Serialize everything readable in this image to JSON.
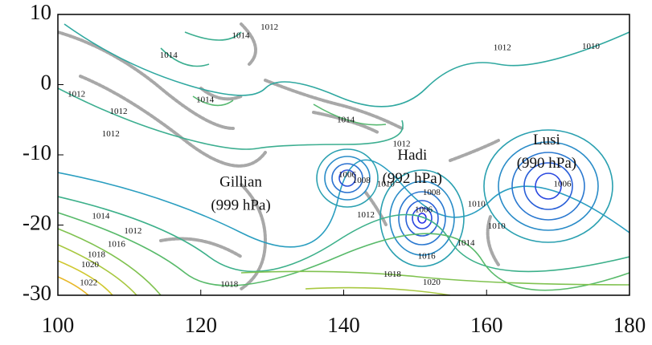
{
  "chart_data": {
    "type": "contour",
    "xlim": [
      100,
      180
    ],
    "ylim": [
      -30,
      10
    ],
    "xticks": [
      100,
      120,
      140,
      160,
      180
    ],
    "yticks": [
      -30,
      -20,
      -10,
      0,
      10
    ],
    "annotations": [
      {
        "lines": [
          "Gillian",
          "(999 hPa)"
        ],
        "x": 125.6,
        "y": -14
      },
      {
        "lines": [
          "Hadi",
          "(992 hPa)"
        ],
        "x": 149.6,
        "y": -10.2
      },
      {
        "lines": [
          "Lusi",
          "(990 hPa)"
        ],
        "x": 168.4,
        "y": -8
      }
    ],
    "contour_labels": [
      {
        "text": 1012,
        "x": 129.6,
        "y": 8.1
      },
      {
        "text": 1014,
        "x": 125.6,
        "y": 6.9
      },
      {
        "text": 1014,
        "x": 115.5,
        "y": 4.1
      },
      {
        "text": 1012,
        "x": 162.2,
        "y": 5.2
      },
      {
        "text": 1010,
        "x": 174.6,
        "y": 5.4
      },
      {
        "text": 1012,
        "x": 102.6,
        "y": -1.4
      },
      {
        "text": 1012,
        "x": 108.5,
        "y": -3.9
      },
      {
        "text": 1012,
        "x": 107.4,
        "y": -7.1
      },
      {
        "text": 1014,
        "x": 120.6,
        "y": -2.2
      },
      {
        "text": 1014,
        "x": 140.3,
        "y": -5.1
      },
      {
        "text": 1012,
        "x": 148.1,
        "y": -8.5
      },
      {
        "text": 1010,
        "x": 145.9,
        "y": -14.2
      },
      {
        "text": 1008,
        "x": 142.5,
        "y": -13.7
      },
      {
        "text": 1006,
        "x": 140.5,
        "y": -12.9
      },
      {
        "text": 1012,
        "x": 143.1,
        "y": -18.6
      },
      {
        "text": 1008,
        "x": 152.3,
        "y": -15.4
      },
      {
        "text": 1006,
        "x": 151.2,
        "y": -17.9
      },
      {
        "text": 1010,
        "x": 158.6,
        "y": -17.1
      },
      {
        "text": 1014,
        "x": 157.1,
        "y": -22.6
      },
      {
        "text": 1016,
        "x": 151.6,
        "y": -24.5
      },
      {
        "text": 1018,
        "x": 146.8,
        "y": -27.1
      },
      {
        "text": 1020,
        "x": 152.3,
        "y": -28.2
      },
      {
        "text": 1010,
        "x": 161.4,
        "y": -20.2
      },
      {
        "text": 1006,
        "x": 170.6,
        "y": -14.2
      },
      {
        "text": 1014,
        "x": 106.0,
        "y": -18.8
      },
      {
        "text": 1012,
        "x": 110.5,
        "y": -20.9
      },
      {
        "text": 1016,
        "x": 108.2,
        "y": -22.8
      },
      {
        "text": 1018,
        "x": 105.4,
        "y": -24.3
      },
      {
        "text": 1020,
        "x": 104.5,
        "y": -25.7
      },
      {
        "text": 1022,
        "x": 104.3,
        "y": -28.3
      },
      {
        "text": 1018,
        "x": 124.0,
        "y": -28.5
      }
    ]
  }
}
